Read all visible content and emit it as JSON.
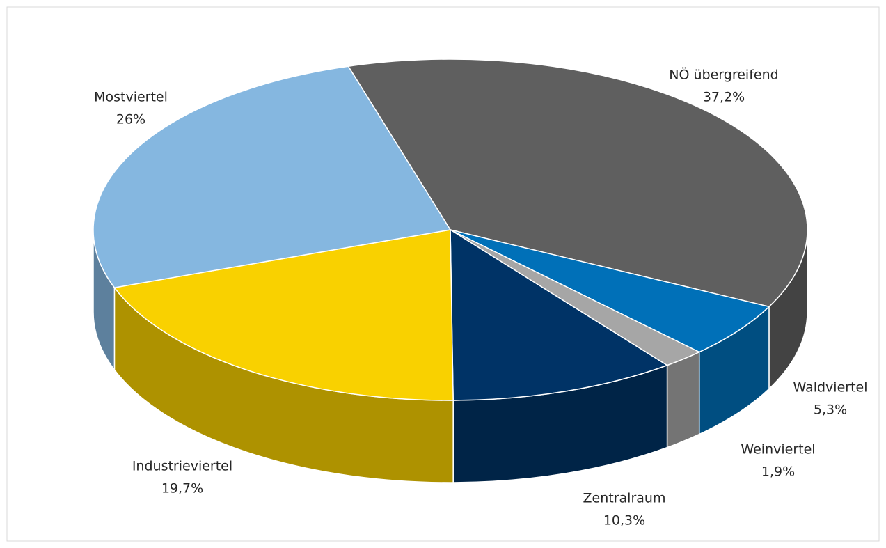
{
  "chart_data": {
    "type": "pie",
    "categories": [
      "NÖ übergreifend",
      "Waldviertel",
      "Weinviertel",
      "Zentralraum",
      "Industrieviertel",
      "Mostviertel"
    ],
    "values": [
      37.2,
      5.3,
      1.9,
      10.3,
      19.7,
      26
    ],
    "value_labels": [
      "37,2%",
      "5,3%",
      "1,9%",
      "10,3%",
      "19,7%",
      "26%"
    ],
    "colors": [
      "#5f5f5f",
      "#0070b8",
      "#a6a6a6",
      "#003366",
      "#f9d100",
      "#85b7e0"
    ]
  }
}
